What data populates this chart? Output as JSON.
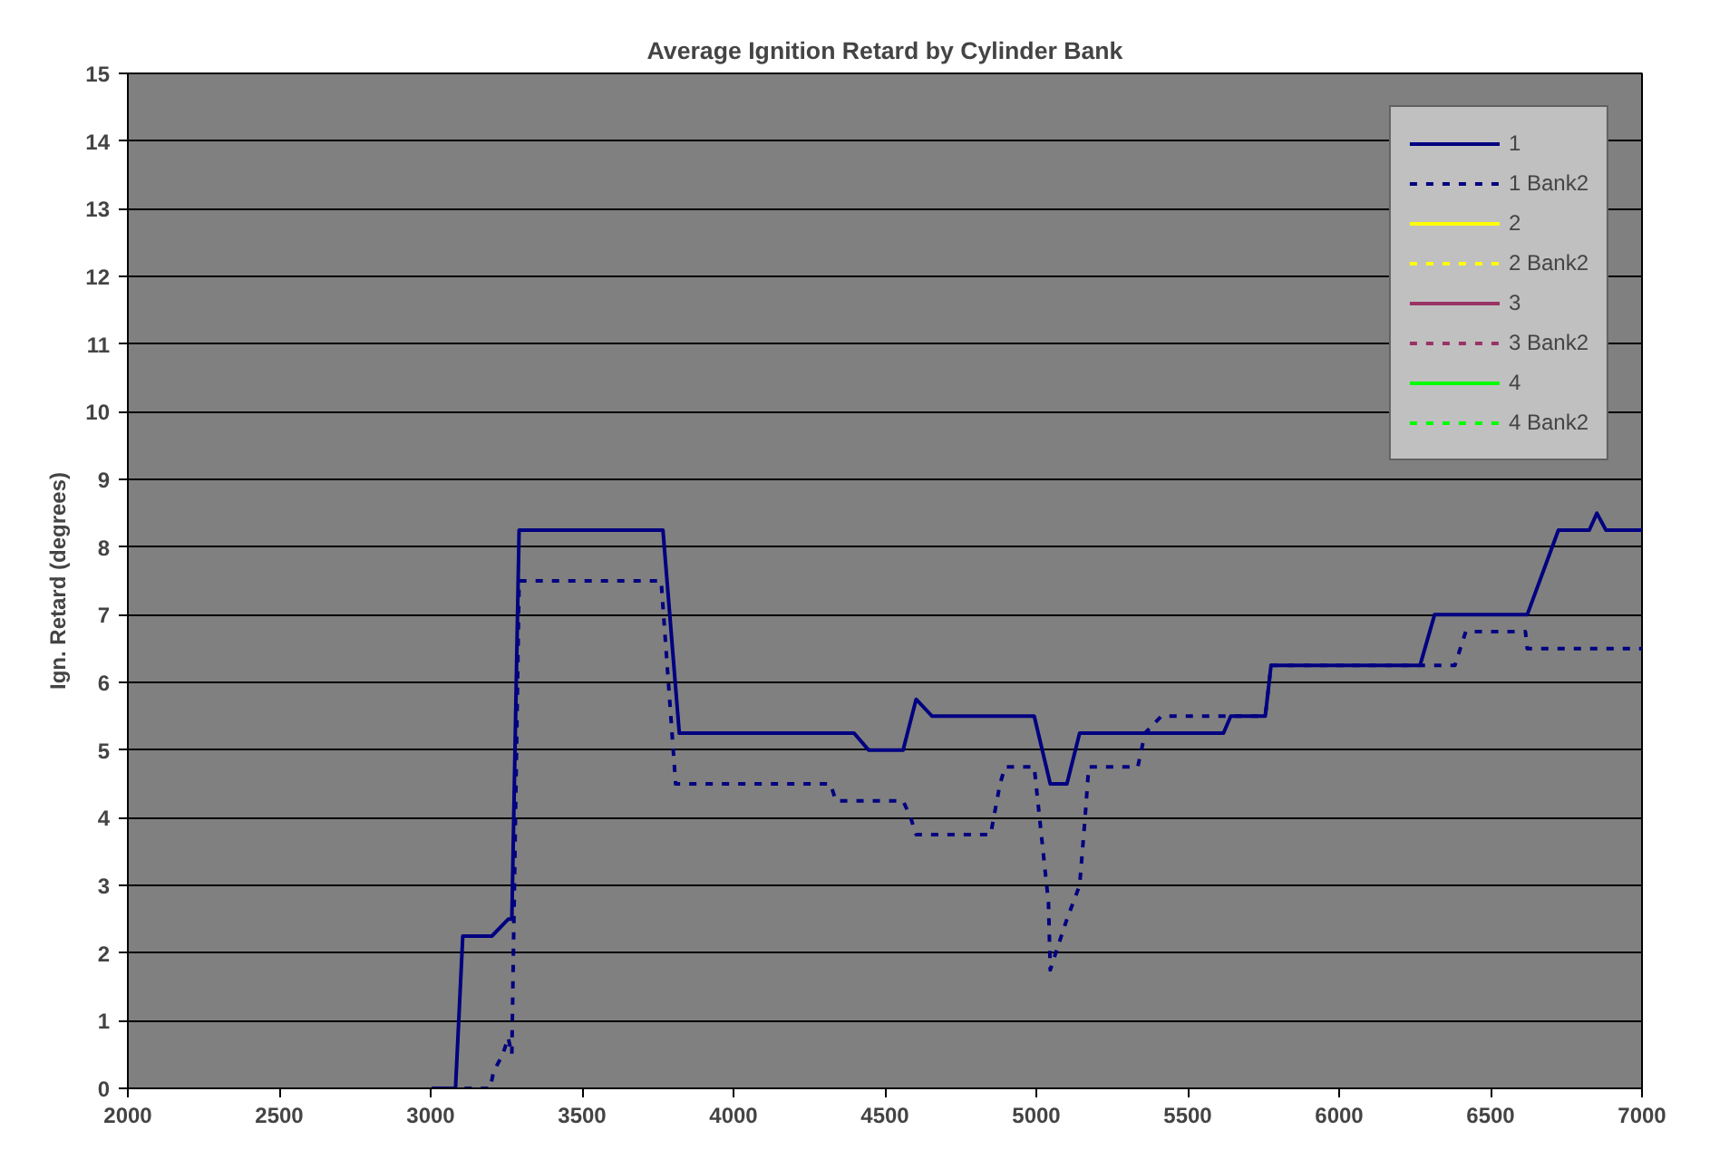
{
  "chart_data": {
    "type": "line",
    "title": "Average Ignition Retard by Cylinder Bank",
    "ylabel": "Ign. Retard (degrees)",
    "xlim": [
      2000,
      7000
    ],
    "xticks": [
      2000,
      2500,
      3000,
      3500,
      4000,
      4500,
      5000,
      5500,
      6000,
      6500,
      7000
    ],
    "ylim": [
      0,
      15
    ],
    "yticks": [
      0,
      1,
      2,
      3,
      4,
      5,
      6,
      7,
      8,
      9,
      10,
      11,
      12,
      13,
      14,
      15
    ],
    "grid": "y",
    "legend": "top right",
    "marker": "none",
    "series": [
      {
        "name": "1",
        "color": "#000080",
        "line_style": "solid",
        "x": [
          3004,
          3082,
          3106,
          3202,
          3256,
          3268,
          3292,
          3767,
          3821,
          4398,
          4446,
          4560,
          4603,
          4656,
          4993,
          5046,
          5101,
          5143,
          5618,
          5642,
          5756,
          5775,
          6267,
          6315,
          6621,
          6724,
          6826,
          6851,
          6881,
          7000
        ],
        "values": [
          0,
          0,
          2.25,
          2.25,
          2.5,
          2.5,
          8.25,
          8.25,
          5.25,
          5.25,
          5.0,
          5.0,
          5.75,
          5.5,
          5.5,
          4.5,
          4.5,
          5.25,
          5.25,
          5.5,
          5.5,
          6.25,
          6.25,
          7.0,
          7.0,
          8.25,
          8.25,
          8.5,
          8.25,
          8.25
        ]
      },
      {
        "name": "1 Bank2",
        "color": "#000080",
        "line_style": "dashed",
        "x": [
          3004,
          3196,
          3208,
          3238,
          3256,
          3268,
          3292,
          3761,
          3809,
          4320,
          4338,
          4560,
          4585,
          4603,
          4849,
          4880,
          4897,
          4993,
          5040,
          5046,
          5064,
          5101,
          5143,
          5161,
          5173,
          5335,
          5359,
          5413,
          5756,
          5775,
          6267,
          6382,
          6418,
          6615,
          6621,
          7000
        ],
        "values": [
          0,
          0,
          0.25,
          0.5,
          0.75,
          0.5,
          7.5,
          7.5,
          4.5,
          4.5,
          4.25,
          4.25,
          4.0,
          3.75,
          3.75,
          4.5,
          4.75,
          4.75,
          2.75,
          1.75,
          2.0,
          2.5,
          3.0,
          4.0,
          4.75,
          4.75,
          5.25,
          5.5,
          5.5,
          6.25,
          6.25,
          6.25,
          6.75,
          6.75,
          6.5,
          6.5
        ]
      },
      {
        "name": "2",
        "color": "#ffff00",
        "line_style": "solid"
      },
      {
        "name": "2 Bank2",
        "color": "#ffff00",
        "line_style": "dashed"
      },
      {
        "name": "3",
        "color": "#993366",
        "line_style": "solid"
      },
      {
        "name": "3 Bank2",
        "color": "#993366",
        "line_style": "dashed"
      },
      {
        "name": "4",
        "color": "#00ff00",
        "line_style": "solid"
      },
      {
        "name": "4 Bank2",
        "color": "#00ff00",
        "line_style": "dashed"
      }
    ]
  }
}
